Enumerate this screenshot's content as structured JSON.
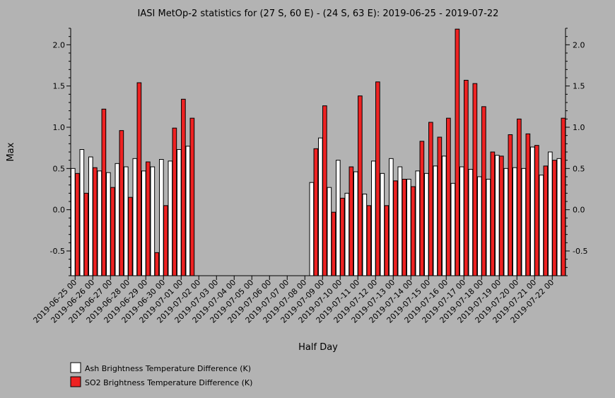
{
  "chart_data": {
    "type": "bar",
    "title": "IASI MetOp-2 statistics for (27 S, 60 E) - (24 S, 63 E): 2019-06-25 - 2019-07-22",
    "xlabel": "Half Day",
    "ylabel": "Max",
    "ylim": [
      -0.8,
      2.2
    ],
    "yticks": [
      "-0.5",
      "0.0",
      "0.5",
      "1.0",
      "1.5",
      "2.0"
    ],
    "xtick_labels": [
      "2019-06-25 00",
      "2019-06-26 00",
      "2019-06-27 00",
      "2019-06-28 00",
      "2019-06-29 00",
      "2019-06-30 00",
      "2019-07-01 00",
      "2019-07-02 00",
      "2019-07-03 00",
      "2019-07-04 00",
      "2019-07-05 00",
      "2019-07-06 00",
      "2019-07-07 00",
      "2019-07-08 00",
      "2019-07-09 00",
      "2019-07-10 00",
      "2019-07-11 00",
      "2019-07-12 00",
      "2019-07-13 00",
      "2019-07-14 00",
      "2019-07-15 00",
      "2019-07-16 00",
      "2019-07-17 00",
      "2019-07-18 00",
      "2019-07-19 00",
      "2019-07-20 00",
      "2019-07-21 00",
      "2019-07-22 00"
    ],
    "categories": [
      "2019-06-25 00",
      "2019-06-25 12",
      "2019-06-26 00",
      "2019-06-26 12",
      "2019-06-27 00",
      "2019-06-27 12",
      "2019-06-28 00",
      "2019-06-28 12",
      "2019-06-29 00",
      "2019-06-29 12",
      "2019-06-30 00",
      "2019-06-30 12",
      "2019-07-01 00",
      "2019-07-01 12",
      "2019-07-02 00",
      "2019-07-02 12",
      "2019-07-03 00",
      "2019-07-03 12",
      "2019-07-04 00",
      "2019-07-04 12",
      "2019-07-05 00",
      "2019-07-05 12",
      "2019-07-06 00",
      "2019-07-06 12",
      "2019-07-07 00",
      "2019-07-07 12",
      "2019-07-08 00",
      "2019-07-08 12",
      "2019-07-09 00",
      "2019-07-09 12",
      "2019-07-10 00",
      "2019-07-10 12",
      "2019-07-11 00",
      "2019-07-11 12",
      "2019-07-12 00",
      "2019-07-12 12",
      "2019-07-13 00",
      "2019-07-13 12",
      "2019-07-14 00",
      "2019-07-14 12",
      "2019-07-15 00",
      "2019-07-15 12",
      "2019-07-16 00",
      "2019-07-16 12",
      "2019-07-17 00",
      "2019-07-17 12",
      "2019-07-18 00",
      "2019-07-18 12",
      "2019-07-19 00",
      "2019-07-19 12",
      "2019-07-20 00",
      "2019-07-20 12",
      "2019-07-21 00",
      "2019-07-21 12",
      "2019-07-22 00",
      "2019-07-22 12"
    ],
    "series": [
      {
        "name": "Ash Brightness Temperature Difference (K)",
        "color": "#ffffff",
        "values": [
          0.5,
          0.73,
          0.64,
          0.47,
          0.45,
          0.56,
          0.52,
          0.62,
          0.47,
          0.52,
          0.61,
          0.59,
          0.73,
          0.77,
          null,
          null,
          null,
          null,
          null,
          null,
          null,
          null,
          null,
          null,
          null,
          null,
          null,
          0.33,
          0.87,
          0.27,
          0.6,
          0.2,
          0.46,
          0.19,
          0.59,
          0.44,
          0.62,
          0.52,
          0.37,
          0.47,
          0.44,
          0.53,
          0.65,
          0.32,
          0.52,
          0.49,
          0.4,
          0.37,
          0.66,
          0.5,
          0.51,
          0.5,
          0.76,
          0.42,
          0.7,
          0.62
        ]
      },
      {
        "name": "SO2 Brightness Temperature Difference (K)",
        "color": "#ee2222",
        "values": [
          0.44,
          0.2,
          0.51,
          1.22,
          0.27,
          0.96,
          0.15,
          1.54,
          0.58,
          -0.52,
          0.05,
          0.99,
          1.34,
          1.11,
          null,
          null,
          null,
          null,
          null,
          null,
          null,
          null,
          null,
          null,
          null,
          null,
          null,
          0.74,
          1.26,
          -0.03,
          0.14,
          0.52,
          1.38,
          0.05,
          1.55,
          0.05,
          0.35,
          0.37,
          0.28,
          0.83,
          1.06,
          0.88,
          1.11,
          2.19,
          1.57,
          1.53,
          1.25,
          0.7,
          0.65,
          0.91,
          1.1,
          0.92,
          0.78,
          0.53,
          0.6,
          1.11
        ]
      }
    ],
    "legend_position": "bottom-left",
    "grid": false
  }
}
